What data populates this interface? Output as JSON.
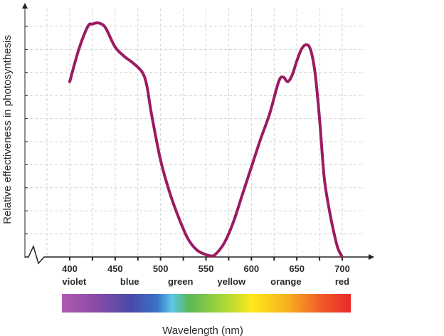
{
  "chart_data": {
    "type": "line",
    "title": "",
    "xlabel": "Wavelength (nm)",
    "ylabel": "Relative effectiveness in photosynthesis",
    "xlim": [
      400,
      700
    ],
    "ylim": [
      0,
      10
    ],
    "x_ticks": [
      400,
      450,
      500,
      550,
      600,
      650,
      700
    ],
    "x_tick_labels": [
      "400",
      "450",
      "500",
      "550",
      "600",
      "650",
      "700"
    ],
    "y_ticks": [
      1,
      2,
      3,
      4,
      5,
      6,
      7,
      8,
      9,
      10
    ],
    "y_tick_labels": [],
    "grid": true,
    "axis_break": true,
    "series": [
      {
        "name": "",
        "color": "#9b1b62",
        "x": [
          400,
          410,
          420,
          425,
          430,
          435,
          440,
          450,
          460,
          470,
          480,
          485,
          490,
          500,
          510,
          520,
          530,
          540,
          550,
          555,
          560,
          570,
          580,
          590,
          600,
          610,
          620,
          630,
          635,
          640,
          645,
          650,
          655,
          660,
          665,
          670,
          675,
          680,
          685,
          690,
          695,
          700
        ],
        "y": [
          7.6,
          9.0,
          10.0,
          10.1,
          10.15,
          10.1,
          9.9,
          9.1,
          8.7,
          8.4,
          8.0,
          7.4,
          6.2,
          4.2,
          2.8,
          1.7,
          0.8,
          0.3,
          0.1,
          0.05,
          0.1,
          0.6,
          1.5,
          2.7,
          3.9,
          5.1,
          6.2,
          7.6,
          7.8,
          7.6,
          7.9,
          8.5,
          9.0,
          9.2,
          9.0,
          8.0,
          6.0,
          3.5,
          2.2,
          1.2,
          0.4,
          0.0
        ]
      }
    ],
    "color_labels": [
      {
        "x": 405,
        "text": "violet"
      },
      {
        "x": 466,
        "text": "blue"
      },
      {
        "x": 522,
        "text": "green"
      },
      {
        "x": 578,
        "text": "yellow"
      },
      {
        "x": 638,
        "text": "orange"
      },
      {
        "x": 700,
        "text": "red"
      }
    ],
    "spectrum_stops": [
      {
        "offset": 0.0,
        "color": "#b05ab0"
      },
      {
        "offset": 0.12,
        "color": "#8a4aa8"
      },
      {
        "offset": 0.24,
        "color": "#4a4aa8"
      },
      {
        "offset": 0.33,
        "color": "#3a72c8"
      },
      {
        "offset": 0.38,
        "color": "#5ac8e8"
      },
      {
        "offset": 0.44,
        "color": "#5ab858"
      },
      {
        "offset": 0.56,
        "color": "#a8d838"
      },
      {
        "offset": 0.66,
        "color": "#ffe81a"
      },
      {
        "offset": 0.78,
        "color": "#f8b020"
      },
      {
        "offset": 0.9,
        "color": "#f05a28"
      },
      {
        "offset": 1.0,
        "color": "#e82828"
      }
    ]
  }
}
